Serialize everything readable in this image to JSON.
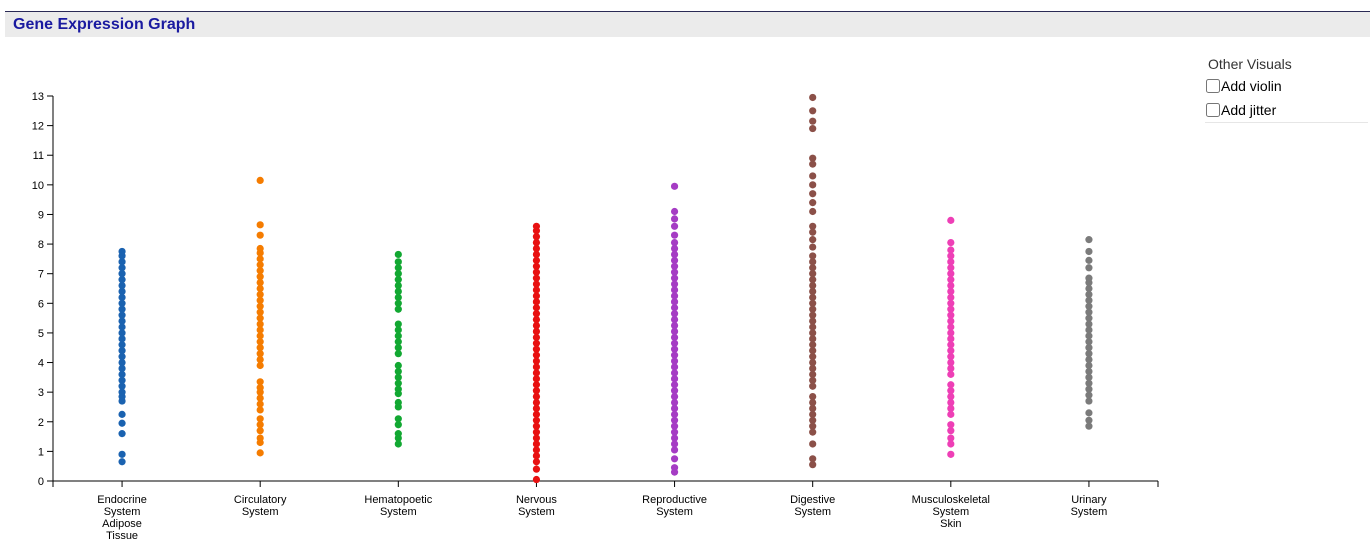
{
  "header": {
    "title": "Gene Expression Graph"
  },
  "panel": {
    "title": "Other Visuals",
    "options": [
      {
        "label": "Add violin",
        "checked": false
      },
      {
        "label": "Add jitter",
        "checked": false
      }
    ]
  },
  "chart_data": {
    "type": "scatter",
    "title": "",
    "xlabel": "",
    "ylabel": "",
    "ylim": [
      0,
      13
    ],
    "yticks": [
      0,
      1,
      2,
      3,
      4,
      5,
      6,
      7,
      8,
      9,
      10,
      11,
      12,
      13
    ],
    "grid": false,
    "categories": [
      {
        "label": [
          "Endocrine",
          "System",
          "Adipose",
          "Tissue"
        ],
        "color": "#1a62b0"
      },
      {
        "label": [
          "Circulatory",
          "System"
        ],
        "color": "#f57c00"
      },
      {
        "label": [
          "Hematopoetic",
          "System"
        ],
        "color": "#12a832"
      },
      {
        "label": [
          "Nervous",
          "System"
        ],
        "color": "#e81111"
      },
      {
        "label": [
          "Reproductive",
          "System"
        ],
        "color": "#a53cc4"
      },
      {
        "label": [
          "Digestive",
          "System"
        ],
        "color": "#8b5048"
      },
      {
        "label": [
          "Musculoskeletal",
          "System",
          "Skin"
        ],
        "color": "#ee3fb6"
      },
      {
        "label": [
          "Urinary",
          "System"
        ],
        "color": "#7b7b7b"
      }
    ],
    "series": [
      {
        "values": [
          0.65,
          0.9,
          1.6,
          1.95,
          2.25,
          2.7,
          2.85,
          3.0,
          3.2,
          3.4,
          3.6,
          3.8,
          4.0,
          4.2,
          4.4,
          4.6,
          4.8,
          5.0,
          5.2,
          5.4,
          5.6,
          5.8,
          6.0,
          6.2,
          6.4,
          6.6,
          6.8,
          7.0,
          7.2,
          7.4,
          7.6,
          7.75
        ]
      },
      {
        "values": [
          0.95,
          1.3,
          1.45,
          1.7,
          1.9,
          2.1,
          2.4,
          2.6,
          2.8,
          3.0,
          3.15,
          3.35,
          3.9,
          4.1,
          4.3,
          4.5,
          4.7,
          4.9,
          5.1,
          5.3,
          5.5,
          5.7,
          5.9,
          6.1,
          6.3,
          6.5,
          6.7,
          6.9,
          7.1,
          7.3,
          7.5,
          7.7,
          7.85,
          8.3,
          8.65,
          10.15
        ]
      },
      {
        "values": [
          1.25,
          1.45,
          1.6,
          1.9,
          2.1,
          2.5,
          2.65,
          2.95,
          3.1,
          3.3,
          3.5,
          3.7,
          3.9,
          4.3,
          4.5,
          4.7,
          4.9,
          5.1,
          5.3,
          5.8,
          6.0,
          6.2,
          6.4,
          6.6,
          6.8,
          7.0,
          7.2,
          7.4,
          7.65
        ]
      },
      {
        "values": [
          0.05,
          0.4,
          0.65,
          0.85,
          1.05,
          1.25,
          1.45,
          1.65,
          1.85,
          2.05,
          2.25,
          2.45,
          2.65,
          2.85,
          3.05,
          3.25,
          3.45,
          3.65,
          3.85,
          4.05,
          4.25,
          4.45,
          4.65,
          4.85,
          5.05,
          5.25,
          5.45,
          5.65,
          5.85,
          6.05,
          6.25,
          6.45,
          6.65,
          6.85,
          7.05,
          7.25,
          7.45,
          7.65,
          7.85,
          8.05,
          8.25,
          8.45,
          8.6
        ]
      },
      {
        "values": [
          0.3,
          0.45,
          0.75,
          1.05,
          1.25,
          1.45,
          1.65,
          1.85,
          2.05,
          2.25,
          2.45,
          2.65,
          2.85,
          3.05,
          3.25,
          3.45,
          3.65,
          3.85,
          4.05,
          4.25,
          4.45,
          4.65,
          4.85,
          5.05,
          5.25,
          5.45,
          5.65,
          5.85,
          6.05,
          6.25,
          6.45,
          6.65,
          6.85,
          7.05,
          7.25,
          7.45,
          7.65,
          7.85,
          8.05,
          8.3,
          8.6,
          8.85,
          9.1,
          9.95
        ]
      },
      {
        "values": [
          0.55,
          0.75,
          1.25,
          1.65,
          1.85,
          2.05,
          2.25,
          2.45,
          2.65,
          2.85,
          3.2,
          3.4,
          3.6,
          3.8,
          4.0,
          4.2,
          4.4,
          4.6,
          4.8,
          5.0,
          5.2,
          5.4,
          5.6,
          5.8,
          6.0,
          6.2,
          6.4,
          6.6,
          6.8,
          7.0,
          7.2,
          7.4,
          7.6,
          7.9,
          8.15,
          8.4,
          8.6,
          9.1,
          9.4,
          9.7,
          10.0,
          10.3,
          10.7,
          10.9,
          11.9,
          12.15,
          12.5,
          12.95
        ]
      },
      {
        "values": [
          0.9,
          1.25,
          1.45,
          1.7,
          1.9,
          2.25,
          2.45,
          2.65,
          2.85,
          3.05,
          3.25,
          3.6,
          3.8,
          4.0,
          4.2,
          4.4,
          4.6,
          4.8,
          5.0,
          5.2,
          5.4,
          5.6,
          5.8,
          6.0,
          6.2,
          6.4,
          6.6,
          6.8,
          7.0,
          7.2,
          7.4,
          7.6,
          7.8,
          8.05,
          8.8
        ]
      },
      {
        "values": [
          1.85,
          2.05,
          2.3,
          2.7,
          2.9,
          3.1,
          3.3,
          3.5,
          3.7,
          3.9,
          4.1,
          4.3,
          4.5,
          4.7,
          4.9,
          5.1,
          5.3,
          5.5,
          5.7,
          5.9,
          6.1,
          6.3,
          6.5,
          6.7,
          6.85,
          7.2,
          7.45,
          7.75,
          8.15
        ]
      }
    ]
  }
}
